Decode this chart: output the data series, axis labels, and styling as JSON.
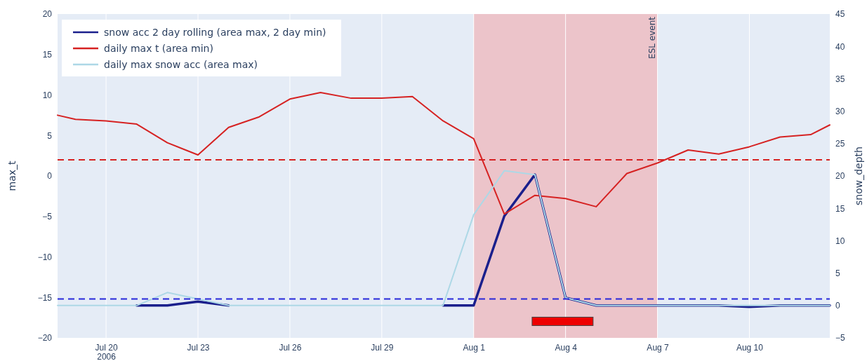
{
  "chart_data": {
    "type": "line",
    "ylabel": "max_t",
    "y2label": "snow_depth",
    "x": [
      "2006-07-18T10:00",
      "2006-07-19",
      "2006-07-20",
      "2006-07-21",
      "2006-07-22",
      "2006-07-23",
      "2006-07-24",
      "2006-07-25",
      "2006-07-26",
      "2006-07-27",
      "2006-07-28",
      "2006-07-29",
      "2006-07-30",
      "2006-07-31",
      "2006-08-01",
      "2006-08-02",
      "2006-08-03",
      "2006-08-04",
      "2006-08-05",
      "2006-08-06",
      "2006-08-07",
      "2006-08-08",
      "2006-08-09",
      "2006-08-10",
      "2006-08-11",
      "2006-08-12",
      "2006-08-12T15:00"
    ],
    "series": [
      {
        "name": "snow acc 2 day rolling (area max, 2 day min)",
        "color": "#1a1f8c",
        "axis": "y2",
        "values": [
          null,
          null,
          null,
          0,
          0,
          0.6,
          0,
          null,
          null,
          null,
          null,
          null,
          null,
          0,
          0,
          13.8,
          20.2,
          1.2,
          0,
          0,
          0,
          0,
          0,
          -0.2,
          0,
          0,
          0
        ]
      },
      {
        "name": "daily max t (area min)",
        "color": "#d62222",
        "values": [
          7.5,
          7.0,
          6.8,
          6.4,
          4.1,
          2.6,
          6.0,
          7.3,
          9.5,
          10.3,
          9.6,
          9.6,
          9.8,
          6.8,
          4.6,
          -4.7,
          -2.4,
          -2.8,
          -3.8,
          0.3,
          1.6,
          3.2,
          2.7,
          3.6,
          4.8,
          5.1,
          6.3
        ]
      },
      {
        "name": "daily max snow acc (area max)",
        "color": "#add8e6",
        "axis": "y2",
        "values": [
          0,
          0,
          0,
          0,
          2.0,
          1.0,
          0,
          0,
          0,
          0,
          0,
          0,
          0,
          0,
          14,
          20.8,
          20.2,
          1.2,
          0,
          0,
          0,
          0,
          0,
          0,
          0,
          0,
          0
        ]
      }
    ],
    "xlim": [
      "2006-07-18T10:00",
      "2006-08-12T15:00"
    ],
    "xticks": [
      {
        "value": "2006-07-20",
        "label": "Jul 20\n2006"
      },
      {
        "value": "2006-07-23",
        "label": "Jul 23"
      },
      {
        "value": "2006-07-26",
        "label": "Jul 26"
      },
      {
        "value": "2006-07-29",
        "label": "Jul 29"
      },
      {
        "value": "2006-08-01",
        "label": "Aug 1"
      },
      {
        "value": "2006-08-04",
        "label": "Aug 4"
      },
      {
        "value": "2006-08-07",
        "label": "Aug 7"
      },
      {
        "value": "2006-08-10",
        "label": "Aug 10"
      }
    ],
    "ylim": [
      -20,
      20
    ],
    "yticks": [
      -20,
      -15,
      -10,
      -5,
      0,
      5,
      10,
      15,
      20
    ],
    "y2lim": [
      -5,
      45
    ],
    "y2ticks": [
      -5,
      0,
      5,
      10,
      15,
      20,
      25,
      30,
      35,
      40,
      45
    ],
    "ref_lines": [
      {
        "axis": "y",
        "value": 2,
        "color": "#d62222",
        "line_style": "dashed"
      },
      {
        "axis": "y2",
        "value": 1,
        "color": "#2626d9",
        "line_style": "dashed"
      }
    ],
    "bands": [
      {
        "axis": "x",
        "from": "2006-08-01",
        "to": "2006-08-07",
        "label": "ESL event",
        "color": "#ecc4ca"
      }
    ],
    "grid": "x",
    "legend": "top left",
    "line_style": "solid",
    "marker": "none"
  }
}
